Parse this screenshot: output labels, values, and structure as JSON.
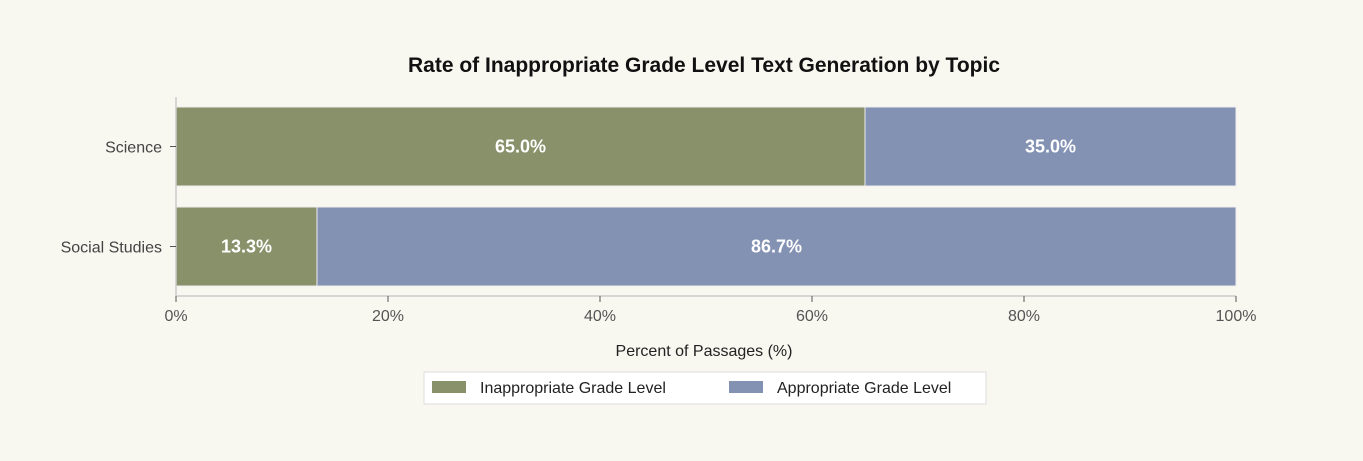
{
  "chart_data": {
    "type": "bar",
    "orientation": "horizontal",
    "stacked": true,
    "title": "Rate of Inappropriate Grade Level Text Generation by Topic",
    "xlabel": "Percent of Passages (%)",
    "ylabel": "",
    "xlim": [
      0,
      100
    ],
    "x_ticks": [
      "0%",
      "20%",
      "40%",
      "60%",
      "80%",
      "100%"
    ],
    "categories": [
      "Science",
      "Social Studies"
    ],
    "series": [
      {
        "name": "Inappropriate Grade Level",
        "values": [
          65.0,
          13.3
        ],
        "labels": [
          "65.0%",
          "13.3%"
        ],
        "color": "#88916a"
      },
      {
        "name": "Appropriate Grade Level",
        "values": [
          35.0,
          86.7
        ],
        "labels": [
          "35.0%",
          "86.7%"
        ],
        "color": "#8391b3"
      }
    ],
    "grid": false,
    "legend_position": "bottom"
  }
}
